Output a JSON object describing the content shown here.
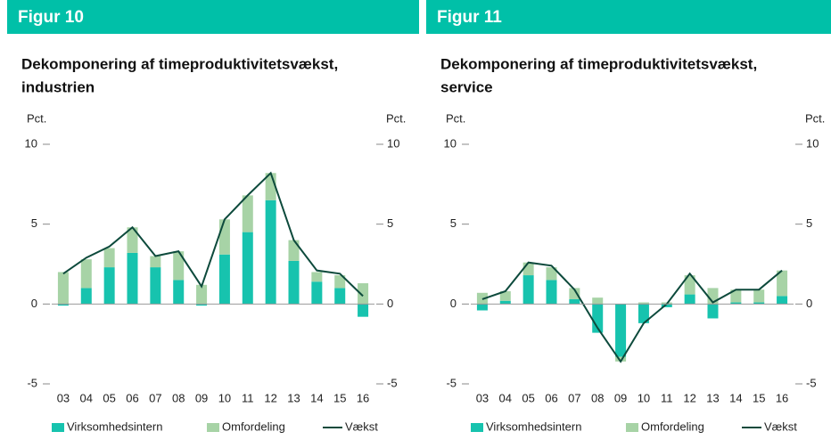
{
  "chart_data": [
    {
      "type": "bar",
      "label": "Figur 10",
      "title": [
        "Dekomponering af timeproduktivitetsvækst,",
        "industrien"
      ],
      "ylabel": "Pct.",
      "y2label": "Pct.",
      "categories": [
        "03",
        "04",
        "05",
        "06",
        "07",
        "08",
        "09",
        "10",
        "11",
        "12",
        "13",
        "14",
        "15",
        "16"
      ],
      "series": [
        {
          "name": "Virksomhedsintern",
          "color": "#17c3ae",
          "values": [
            -0.1,
            1.0,
            2.3,
            3.2,
            2.3,
            1.5,
            -0.1,
            3.1,
            4.5,
            6.5,
            2.7,
            1.4,
            1.0,
            -0.8
          ]
        },
        {
          "name": "Omfordeling",
          "color": "#a7d3a6",
          "values": [
            2.0,
            1.8,
            1.2,
            1.6,
            0.7,
            1.8,
            1.2,
            2.2,
            2.3,
            1.7,
            1.3,
            0.6,
            0.8,
            1.3
          ]
        },
        {
          "name": "Vækst",
          "type": "line",
          "color": "#0d4a3c",
          "values": [
            1.9,
            2.9,
            3.6,
            4.8,
            3.0,
            3.3,
            1.1,
            5.3,
            6.8,
            8.2,
            4.0,
            2.1,
            1.9,
            0.5
          ]
        }
      ],
      "ylim": [
        -5,
        10
      ],
      "yticks": [
        -5,
        0,
        5,
        10
      ],
      "y2lim": [
        -5,
        10
      ],
      "y2ticks": [
        -5,
        0,
        5,
        10
      ]
    },
    {
      "type": "bar",
      "label": "Figur 11",
      "title": [
        "Dekomponering af timeproduktivitetsvækst,",
        "service"
      ],
      "ylabel": "Pct.",
      "y2label": "Pct.",
      "categories": [
        "03",
        "04",
        "05",
        "06",
        "07",
        "08",
        "09",
        "10",
        "11",
        "12",
        "13",
        "14",
        "15",
        "16"
      ],
      "series": [
        {
          "name": "Virksomhedsintern",
          "color": "#17c3ae",
          "values": [
            -0.4,
            0.2,
            1.8,
            1.5,
            0.3,
            -1.8,
            -3.3,
            -1.2,
            -0.2,
            0.6,
            -0.9,
            0.1,
            0.1,
            0.5
          ]
        },
        {
          "name": "Omfordeling",
          "color": "#a7d3a6",
          "values": [
            0.7,
            0.6,
            0.8,
            0.8,
            0.7,
            0.4,
            -0.3,
            0.1,
            0.1,
            1.2,
            1.0,
            0.8,
            0.8,
            1.6
          ]
        },
        {
          "name": "Vækst",
          "type": "line",
          "color": "#0d4a3c",
          "values": [
            0.3,
            0.8,
            2.6,
            2.4,
            0.9,
            -1.5,
            -3.6,
            -1.2,
            0.0,
            1.9,
            0.1,
            0.9,
            0.9,
            2.1
          ]
        }
      ],
      "ylim": [
        -5,
        10
      ],
      "yticks": [
        -5,
        0,
        5,
        10
      ],
      "y2lim": [
        -5,
        10
      ],
      "y2ticks": [
        -5,
        0,
        5,
        10
      ]
    }
  ]
}
